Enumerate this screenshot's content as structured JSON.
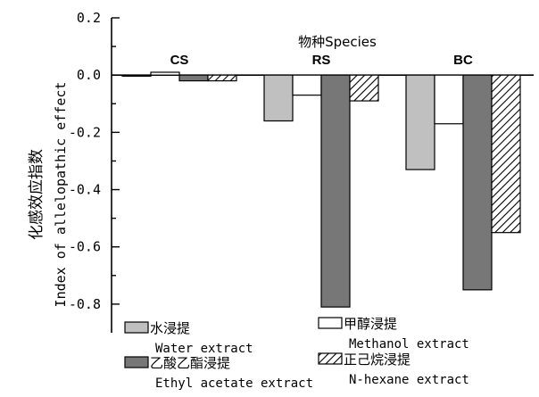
{
  "chart_data": {
    "type": "bar",
    "title": "物种Species",
    "ylabel_cn": "化感效应指数",
    "ylabel_en": "Index of allelopathic effect",
    "ylim": [
      -0.9,
      0.2
    ],
    "yticks": [
      0.2,
      0.0,
      -0.2,
      -0.4,
      -0.6,
      -0.8
    ],
    "ytick_labels": [
      "0.2",
      "0.0",
      "-0.2",
      "-0.4",
      "-0.6",
      "-0.8"
    ],
    "categories": [
      "CS",
      "RS",
      "BC"
    ],
    "series": [
      {
        "name_cn": "水浸提",
        "name_en": "Water extract",
        "fill": "#c0c0c0",
        "pattern": "solid",
        "values": [
          0.0,
          -0.16,
          -0.33
        ]
      },
      {
        "name_cn": "甲醇浸提",
        "name_en": "Methanol extract",
        "fill": "#ffffff",
        "pattern": "solid",
        "values": [
          0.01,
          -0.07,
          -0.17
        ]
      },
      {
        "name_cn": "乙酸乙酯浸提",
        "name_en": "Ethyl acetate extract",
        "fill": "#777777",
        "pattern": "solid",
        "values": [
          -0.02,
          -0.81,
          -0.75
        ]
      },
      {
        "name_cn": "正己烷浸提",
        "name_en": "N-hexane extract",
        "fill": "#ffffff",
        "pattern": "hatch",
        "values": [
          -0.02,
          -0.09,
          -0.55
        ]
      }
    ],
    "grid": false,
    "legend_position": "bottom"
  }
}
